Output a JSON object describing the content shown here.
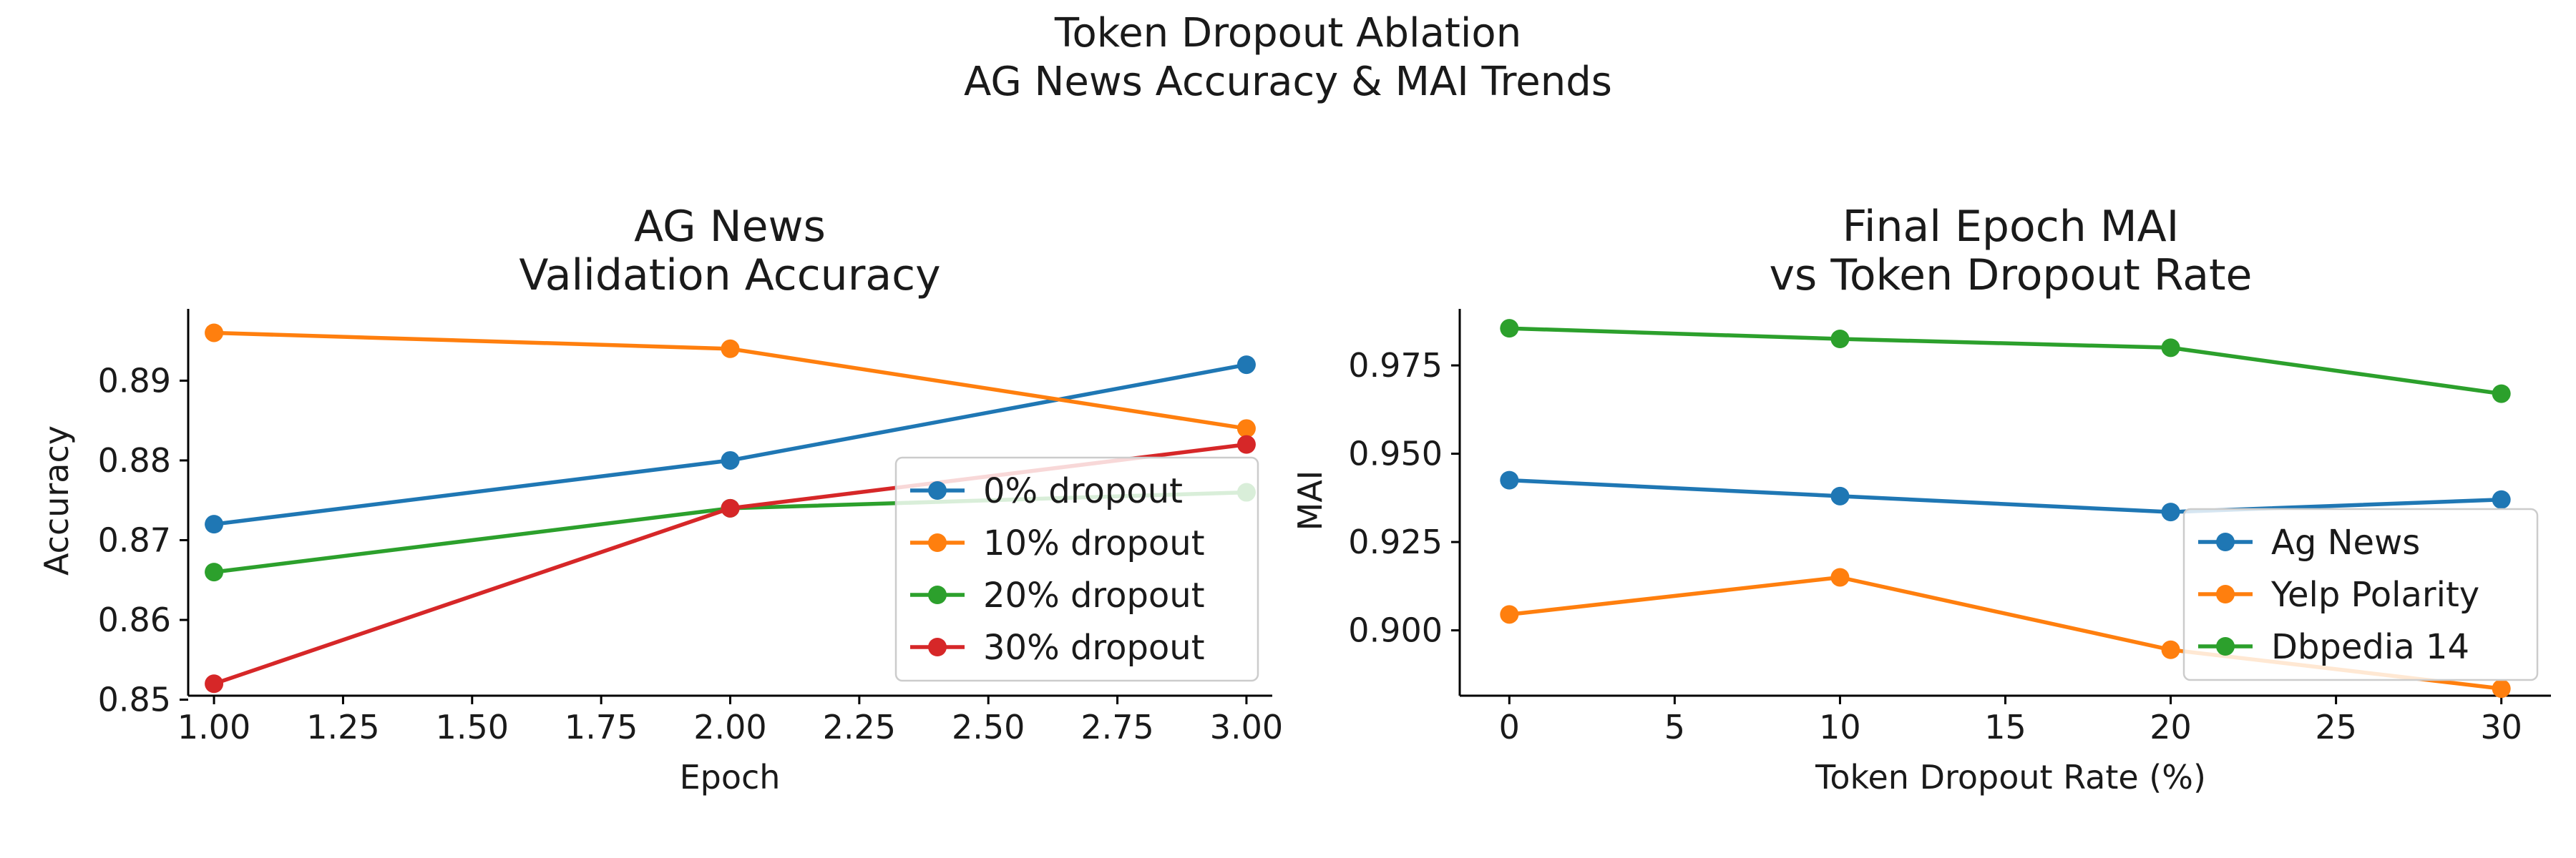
{
  "figure": {
    "suptitle_line1": "Token Dropout Ablation",
    "suptitle_line2": "AG News Accuracy & MAI Trends"
  },
  "chart_data": [
    {
      "type": "line",
      "title_line1": "AG News",
      "title_line2": "Validation Accuracy",
      "xlabel": "Epoch",
      "ylabel": "Accuracy",
      "x": [
        1,
        2,
        3
      ],
      "xlim": [
        0.95,
        3.05
      ],
      "ylim": [
        0.8505,
        0.899
      ],
      "xticks": [
        1.0,
        1.25,
        1.5,
        1.75,
        2.0,
        2.25,
        2.5,
        2.75,
        3.0
      ],
      "xtick_labels": [
        "1.00",
        "1.25",
        "1.50",
        "1.75",
        "2.00",
        "2.25",
        "2.50",
        "2.75",
        "3.00"
      ],
      "yticks": [
        0.85,
        0.86,
        0.87,
        0.88,
        0.89
      ],
      "ytick_labels": [
        "0.85",
        "0.86",
        "0.87",
        "0.88",
        "0.89"
      ],
      "grid": false,
      "legend_position": "lower-right",
      "series": [
        {
          "name": "0% dropout",
          "color": "#1f77b4",
          "values": [
            0.872,
            0.88,
            0.892
          ]
        },
        {
          "name": "10% dropout",
          "color": "#ff7f0e",
          "values": [
            0.896,
            0.894,
            0.884
          ]
        },
        {
          "name": "20% dropout",
          "color": "#2ca02c",
          "values": [
            0.866,
            0.874,
            0.876
          ]
        },
        {
          "name": "30% dropout",
          "color": "#d62728",
          "values": [
            0.852,
            0.874,
            0.882
          ]
        }
      ]
    },
    {
      "type": "line",
      "title_line1": "Final Epoch MAI",
      "title_line2": "vs Token Dropout Rate",
      "xlabel": "Token Dropout Rate (%)",
      "ylabel": "MAI",
      "x": [
        0,
        10,
        20,
        30
      ],
      "xlim": [
        -1.5,
        31.5
      ],
      "ylim": [
        0.8815,
        0.991
      ],
      "xticks": [
        0,
        5,
        10,
        15,
        20,
        25,
        30
      ],
      "xtick_labels": [
        "0",
        "5",
        "10",
        "15",
        "20",
        "25",
        "30"
      ],
      "yticks": [
        0.9,
        0.925,
        0.95,
        0.975
      ],
      "ytick_labels": [
        "0.900",
        "0.925",
        "0.950",
        "0.975"
      ],
      "grid": false,
      "legend_position": "lower-right",
      "series": [
        {
          "name": "Ag News",
          "color": "#1f77b4",
          "values": [
            0.9425,
            0.938,
            0.9335,
            0.937
          ]
        },
        {
          "name": "Yelp Polarity",
          "color": "#ff7f0e",
          "values": [
            0.9045,
            0.915,
            0.8945,
            0.8835
          ]
        },
        {
          "name": "Dbpedia 14",
          "color": "#2ca02c",
          "values": [
            0.9855,
            0.9825,
            0.98,
            0.967
          ]
        }
      ]
    }
  ]
}
